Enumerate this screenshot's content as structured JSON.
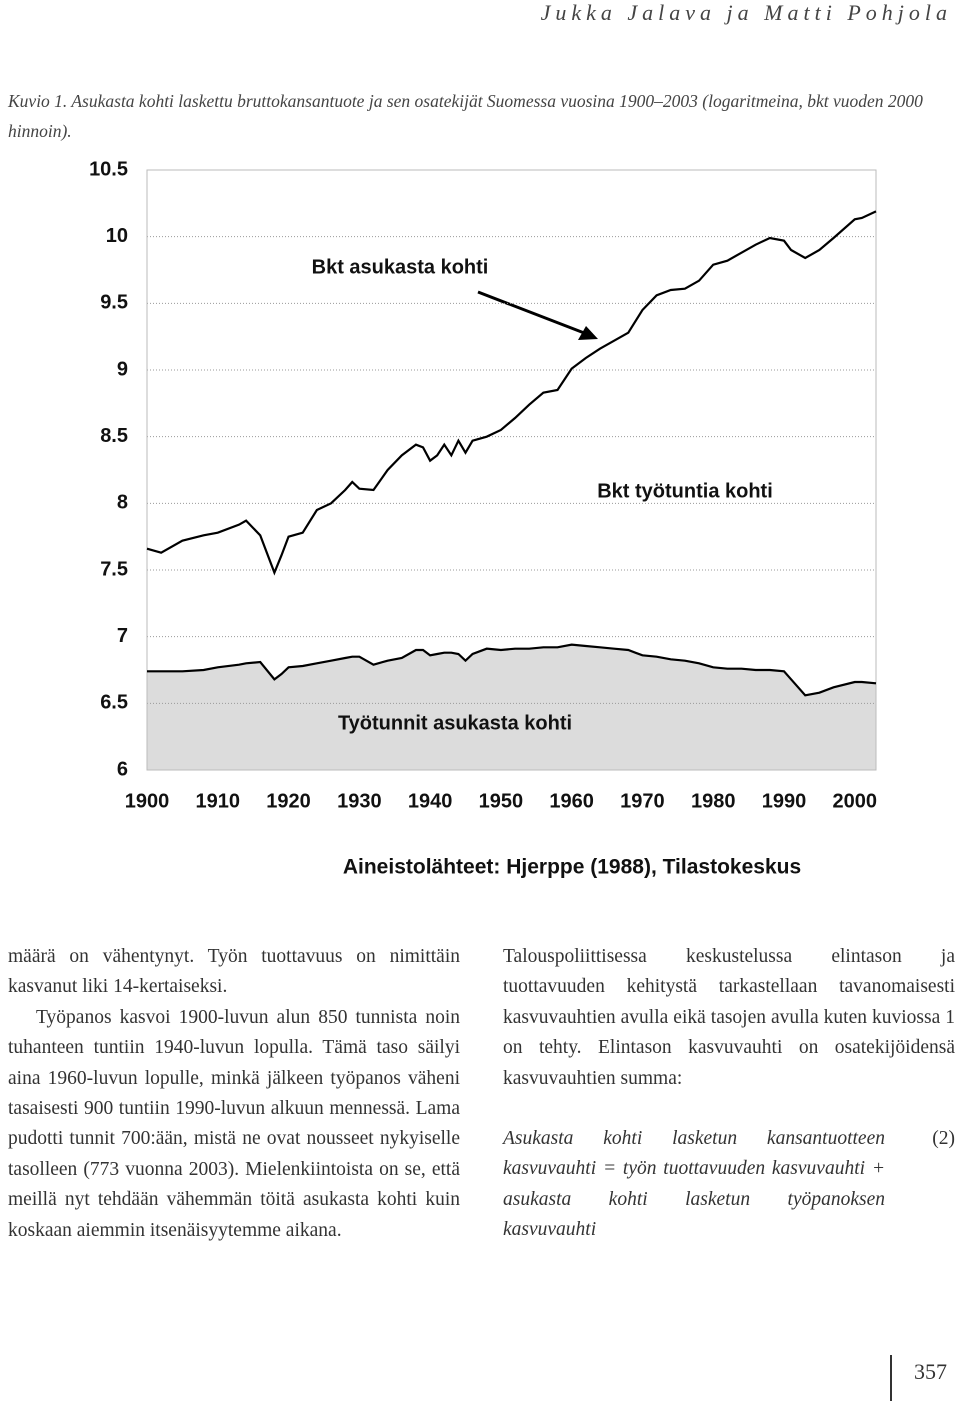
{
  "header": {
    "authors": "Jukka Jalava ja Matti Pohjola"
  },
  "caption": "Kuvio 1. Asukasta kohti laskettu bruttokansantuote ja sen osatekijät Suomessa vuosina 1900–2003 (logaritmeina, bkt vuoden 2000 hinnoin).",
  "chart_data": {
    "type": "line",
    "x": [
      1900,
      1902,
      1905,
      1908,
      1910,
      1913,
      1914,
      1916,
      1918,
      1919,
      1920,
      1922,
      1924,
      1926,
      1928,
      1929,
      1930,
      1932,
      1934,
      1936,
      1938,
      1939,
      1940,
      1941,
      1942,
      1943,
      1944,
      1945,
      1946,
      1948,
      1950,
      1952,
      1954,
      1956,
      1958,
      1960,
      1962,
      1964,
      1966,
      1968,
      1970,
      1972,
      1974,
      1976,
      1978,
      1980,
      1982,
      1984,
      1986,
      1988,
      1990,
      1991,
      1993,
      1995,
      1997,
      2000,
      2001,
      2003
    ],
    "series": [
      {
        "name": "Bkt asukasta kohti",
        "color": "#000000",
        "values": [
          7.66,
          7.63,
          7.72,
          7.76,
          7.78,
          7.84,
          7.87,
          7.76,
          7.48,
          7.61,
          7.75,
          7.78,
          7.95,
          8.0,
          8.1,
          8.16,
          8.11,
          8.1,
          8.25,
          8.36,
          8.44,
          8.42,
          8.32,
          8.36,
          8.44,
          8.36,
          8.47,
          8.38,
          8.47,
          8.5,
          8.55,
          8.64,
          8.74,
          8.83,
          8.85,
          9.01,
          9.09,
          9.16,
          9.22,
          9.28,
          9.45,
          9.56,
          9.6,
          9.61,
          9.67,
          9.79,
          9.82,
          9.88,
          9.94,
          9.99,
          9.97,
          9.9,
          9.84,
          9.9,
          9.99,
          10.13,
          10.14,
          10.19
        ]
      },
      {
        "name": "Työtunnit asukasta kohti",
        "color": "#000000",
        "fill": "#dcdcdc",
        "values": [
          6.74,
          6.74,
          6.74,
          6.75,
          6.77,
          6.79,
          6.8,
          6.81,
          6.68,
          6.72,
          6.77,
          6.78,
          6.8,
          6.82,
          6.84,
          6.85,
          6.85,
          6.79,
          6.82,
          6.84,
          6.9,
          6.9,
          6.86,
          6.87,
          6.88,
          6.88,
          6.87,
          6.82,
          6.87,
          6.91,
          6.9,
          6.91,
          6.91,
          6.92,
          6.92,
          6.94,
          6.93,
          6.92,
          6.91,
          6.9,
          6.86,
          6.85,
          6.83,
          6.82,
          6.8,
          6.77,
          6.76,
          6.76,
          6.75,
          6.75,
          6.74,
          6.68,
          6.56,
          6.58,
          6.62,
          6.66,
          6.66,
          6.65
        ]
      }
    ],
    "annotations": [
      "Bkt asukasta kohti",
      "Bkt työtuntia kohti",
      "Työtunnit asukasta kohti"
    ],
    "source": "Aineistolähteet: Hjerppe (1988), Tilastokeskus",
    "xlim": [
      1900,
      2003
    ],
    "xticks": [
      1900,
      1910,
      1920,
      1930,
      1940,
      1950,
      1960,
      1970,
      1980,
      1990,
      2000
    ],
    "ylim": [
      6,
      10.5
    ],
    "yticks": [
      6,
      6.5,
      7,
      7.5,
      8,
      8.5,
      9,
      9.5,
      10,
      10.5
    ],
    "grid": true
  },
  "left_column": [
    "määrä on vähentynyt. Työn tuottavuus on nimittäin kasvanut liki 14-kertaiseksi.",
    "Työpanos kasvoi 1900-luvun alun 850 tunnista noin tuhanteen tuntiin 1940-luvun lopulla. Tämä taso säilyi aina 1960-luvun lopulle, minkä jälkeen työpanos väheni tasaisesti 900 tuntiin 1990-luvun alkuun mennessä. Lama pudotti tunnit 700:ään, mistä ne ovat nousseet nykyiselle tasolleen (773 vuonna 2003). Mielenkiintoista on se, että meillä nyt tehdään vähemmän töitä asukasta kohti kuin koskaan aiemmin itsenäisyytemme aikana."
  ],
  "right_column": {
    "paragraph": "Talouspoliittisessa keskustelussa elintason ja tuottavuuden kehitystä tarkastellaan tavanomaisesti kasvuvauhtien avulla eikä tasojen avulla kuten kuviossa 1 on tehty. Elintason kasvuvauhti on osatekijöidensä kasvuvauhtien summa:",
    "equation": "Asukasta kohti lasketun kansantuotteen kasvuvauhti = työn tuottavuuden kasvuvauhti + asukasta kohti lasketun työpanoksen kasvuvauhti",
    "equation_number": "(2)"
  },
  "page_number": "357"
}
